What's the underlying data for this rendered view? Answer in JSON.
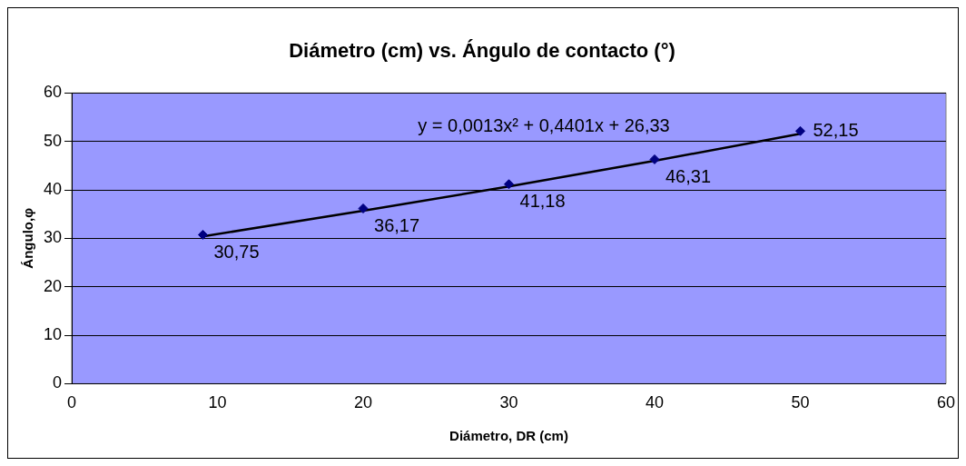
{
  "chart_data": {
    "type": "scatter",
    "title": "Diámetro (cm) vs. Ángulo de contacto (°)",
    "xlabel": "Diámetro, DR (cm)",
    "ylabel": "Ángulo,φ",
    "x": [
      9,
      20,
      30,
      40,
      50
    ],
    "series": [
      {
        "type": "scatter",
        "color": "#000080",
        "marker": "diamond",
        "values": [
          30.75,
          36.17,
          41.18,
          46.31,
          52.15
        ],
        "value_labels": [
          "30,75",
          "36,17",
          "41,18",
          "46,31",
          "52,15"
        ]
      },
      {
        "type": "line",
        "color": "#000000",
        "marker": "none",
        "x": [
          9,
          20,
          30,
          40,
          50
        ],
        "values": [
          30.4,
          35.7,
          40.7,
          46,
          51.6
        ]
      }
    ],
    "annotations": [
      "y = 0,0013x² + 0,4401x + 26,33"
    ],
    "xlim": [
      0,
      60
    ],
    "xticks": [
      0,
      10,
      20,
      30,
      40,
      50,
      60
    ],
    "ylim": [
      0,
      60
    ],
    "yticks": [
      0,
      10,
      20,
      30,
      40,
      50,
      60
    ],
    "grid": "y",
    "legend": false
  }
}
